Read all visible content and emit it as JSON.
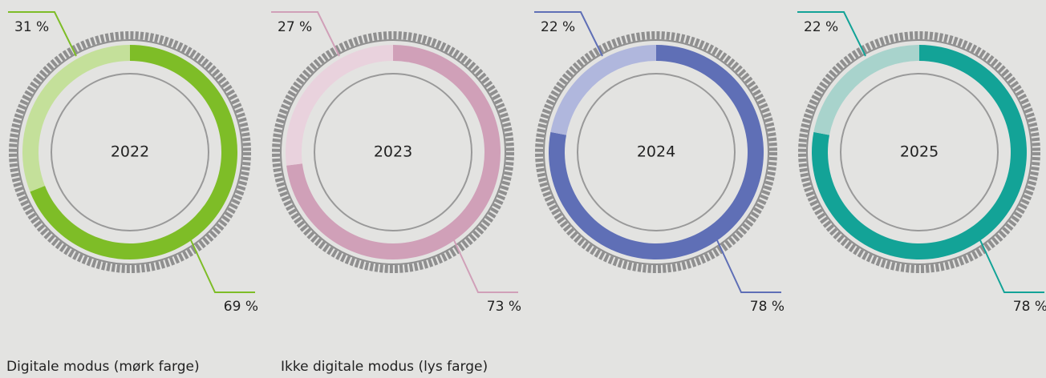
{
  "chart_data": [
    {
      "type": "pie",
      "title": "2022",
      "values": [
        69,
        31
      ],
      "value_labels": [
        "69 %",
        "31 %"
      ],
      "colors": [
        "#7ebd27",
        "#c4e09a"
      ]
    },
    {
      "type": "pie",
      "title": "2023",
      "values": [
        73,
        27
      ],
      "value_labels": [
        "73 %",
        "27 %"
      ],
      "colors": [
        "#d0a0b8",
        "#e9d2dd"
      ]
    },
    {
      "type": "pie",
      "title": "2024",
      "values": [
        78,
        22
      ],
      "value_labels": [
        "78 %",
        "22 %"
      ],
      "colors": [
        "#5f6fb6",
        "#b0b7dd"
      ]
    },
    {
      "type": "pie",
      "title": "2025",
      "values": [
        78,
        22
      ],
      "value_labels": [
        "78 %",
        "22 %"
      ],
      "colors": [
        "#13a397",
        "#a8d3cc"
      ]
    }
  ],
  "legend": [
    "Digitale modus (mørk farge)",
    "Ikke digitale modus (lys farge)"
  ]
}
